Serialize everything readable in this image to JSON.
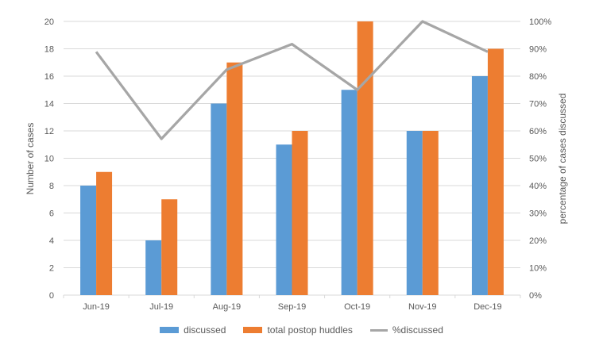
{
  "chart_data": {
    "type": "combo",
    "title": "",
    "categories": [
      "Jun-19",
      "Jul-19",
      "Aug-19",
      "Sep-19",
      "Oct-19",
      "Nov-19",
      "Dec-19"
    ],
    "series": [
      {
        "name": "discussed",
        "type": "bar",
        "axis": "left",
        "color": "#5B9BD5",
        "values": [
          8,
          4,
          14,
          11,
          15,
          12,
          16
        ]
      },
      {
        "name": "total postop huddles",
        "type": "bar",
        "axis": "left",
        "color": "#ED7D31",
        "values": [
          9,
          7,
          17,
          12,
          20,
          12,
          18
        ]
      },
      {
        "name": "%discussed",
        "type": "line",
        "axis": "right",
        "color": "#A6A6A6",
        "values": [
          88.9,
          57.1,
          82.4,
          91.7,
          75,
          100,
          88.9
        ]
      }
    ],
    "left_axis": {
      "label": "Number of cases",
      "min": 0,
      "max": 20,
      "step": 2,
      "suffix": ""
    },
    "right_axis": {
      "label": "percentage of cases discussed",
      "min": 0,
      "max": 100,
      "step": 10,
      "suffix": "%"
    },
    "grid": true,
    "legend_position": "bottom",
    "style": {
      "gridline_color": "#D9D9D9",
      "axis_line_color": "#D9D9D9",
      "tick_text_color": "#595959",
      "background": "#FFFFFF"
    }
  }
}
